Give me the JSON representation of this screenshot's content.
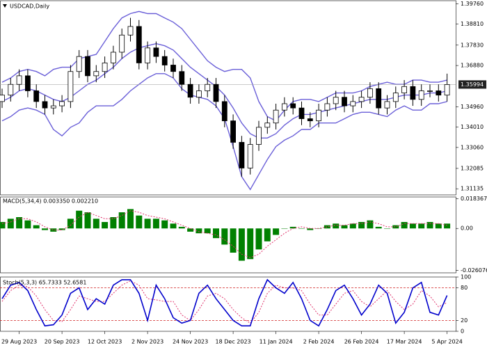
{
  "chart_data": [
    {
      "type": "candlestick",
      "title": "USDCAD,Daily",
      "categories": [
        null,
        null,
        "29 Aug 2023",
        null,
        null,
        null,
        null,
        "20 Sep 2023",
        null,
        null,
        null,
        null,
        "12 Oct 2023",
        null,
        null,
        null,
        null,
        "2 Nov 2023",
        null,
        null,
        null,
        null,
        "24 Nov 2023",
        null,
        null,
        null,
        null,
        "18 Dec 2023",
        null,
        null,
        null,
        null,
        "11 Jan 2024",
        null,
        null,
        null,
        null,
        "2 Feb 2024",
        null,
        null,
        null,
        null,
        "26 Feb 2024",
        null,
        null,
        null,
        null,
        "17 Mar 2024",
        null,
        null,
        null,
        null,
        "5 Apr 2024"
      ],
      "open": [
        1.352,
        1.355,
        1.36,
        1.364,
        1.357,
        1.352,
        1.349,
        1.35,
        1.352,
        1.366,
        1.373,
        1.364,
        1.366,
        1.37,
        1.375,
        1.383,
        1.387,
        1.37,
        1.377,
        1.373,
        1.369,
        1.366,
        1.36,
        1.354,
        1.357,
        1.36,
        1.352,
        1.343,
        1.333,
        1.321,
        1.332,
        1.34,
        1.342,
        1.348,
        1.351,
        1.349,
        1.344,
        1.343,
        1.348,
        1.351,
        1.354,
        1.35,
        1.352,
        1.354,
        1.358,
        1.349,
        1.352,
        1.356,
        1.359,
        1.353,
        1.357,
        1.357,
        1.355
      ],
      "high": [
        1.358,
        1.363,
        1.367,
        1.367,
        1.36,
        1.355,
        1.353,
        1.355,
        1.369,
        1.376,
        1.376,
        1.369,
        1.373,
        1.378,
        1.386,
        1.391,
        1.39,
        1.38,
        1.38,
        1.376,
        1.372,
        1.369,
        1.363,
        1.36,
        1.363,
        1.363,
        1.355,
        1.346,
        1.336,
        1.335,
        1.343,
        1.345,
        1.351,
        1.354,
        1.354,
        1.352,
        1.347,
        1.351,
        1.354,
        1.357,
        1.357,
        1.355,
        1.357,
        1.361,
        1.361,
        1.355,
        1.359,
        1.362,
        1.362,
        1.36,
        1.36,
        1.36,
        1.365
      ],
      "low": [
        1.349,
        1.352,
        1.357,
        1.354,
        1.349,
        1.346,
        1.346,
        1.347,
        1.349,
        1.363,
        1.361,
        1.361,
        1.363,
        1.367,
        1.372,
        1.38,
        1.367,
        1.367,
        1.37,
        1.366,
        1.363,
        1.357,
        1.351,
        1.351,
        1.354,
        1.349,
        1.34,
        1.33,
        1.317,
        1.318,
        1.329,
        1.337,
        1.339,
        1.345,
        1.346,
        1.341,
        1.34,
        1.34,
        1.345,
        1.348,
        1.347,
        1.347,
        1.349,
        1.351,
        1.346,
        1.346,
        1.349,
        1.353,
        1.35,
        1.35,
        1.354,
        1.352,
        1.352
      ],
      "close": [
        1.355,
        1.36,
        1.364,
        1.357,
        1.352,
        1.349,
        1.35,
        1.352,
        1.366,
        1.373,
        1.364,
        1.366,
        1.37,
        1.375,
        1.383,
        1.387,
        1.37,
        1.377,
        1.373,
        1.369,
        1.366,
        1.36,
        1.354,
        1.357,
        1.36,
        1.352,
        1.343,
        1.333,
        1.321,
        1.332,
        1.34,
        1.342,
        1.348,
        1.351,
        1.349,
        1.344,
        1.343,
        1.348,
        1.351,
        1.354,
        1.35,
        1.352,
        1.354,
        1.358,
        1.349,
        1.352,
        1.356,
        1.359,
        1.353,
        1.357,
        1.357,
        1.355,
        1.35994
      ],
      "up_color": "#ffffff",
      "down_color": "#000000",
      "bands": {
        "color": "#6a5fd8",
        "upper": [
          1.361,
          1.363,
          1.366,
          1.367,
          1.366,
          1.364,
          1.367,
          1.368,
          1.368,
          1.372,
          1.373,
          1.374,
          1.38,
          1.386,
          1.391,
          1.393,
          1.394,
          1.393,
          1.393,
          1.391,
          1.389,
          1.386,
          1.381,
          1.376,
          1.371,
          1.368,
          1.366,
          1.367,
          1.367,
          1.363,
          1.352,
          1.345,
          1.343,
          1.348,
          1.352,
          1.353,
          1.353,
          1.352,
          1.354,
          1.356,
          1.356,
          1.356,
          1.357,
          1.359,
          1.36,
          1.361,
          1.36,
          1.36,
          1.362,
          1.362,
          1.361,
          1.361,
          1.362
        ],
        "middle": [
          1.352,
          1.354,
          1.357,
          1.358,
          1.357,
          1.355,
          1.353,
          1.352,
          1.354,
          1.357,
          1.36,
          1.362,
          1.365,
          1.368,
          1.372,
          1.375,
          1.377,
          1.378,
          1.379,
          1.378,
          1.376,
          1.372,
          1.368,
          1.365,
          1.362,
          1.359,
          1.355,
          1.349,
          1.342,
          1.337,
          1.335,
          1.335,
          1.337,
          1.341,
          1.344,
          1.346,
          1.346,
          1.347,
          1.348,
          1.349,
          1.35,
          1.351,
          1.352,
          1.353,
          1.353,
          1.353,
          1.354,
          1.355,
          1.355,
          1.355,
          1.356,
          1.356,
          1.357
        ],
        "lower": [
          1.343,
          1.345,
          1.348,
          1.349,
          1.348,
          1.346,
          1.339,
          1.336,
          1.34,
          1.342,
          1.347,
          1.35,
          1.35,
          1.35,
          1.353,
          1.357,
          1.36,
          1.363,
          1.365,
          1.365,
          1.363,
          1.358,
          1.355,
          1.354,
          1.353,
          1.35,
          1.344,
          1.331,
          1.317,
          1.311,
          1.318,
          1.325,
          1.331,
          1.334,
          1.336,
          1.339,
          1.339,
          1.342,
          1.342,
          1.342,
          1.344,
          1.346,
          1.347,
          1.347,
          1.346,
          1.345,
          1.348,
          1.35,
          1.348,
          1.348,
          1.351,
          1.351,
          1.352
        ]
      },
      "last_price": 1.35994,
      "ylim": [
        1.3085,
        1.399
      ],
      "yticks": [
        {
          "value": 1.3976,
          "label": "1.39760"
        },
        {
          "value": 1.3881,
          "label": "1.38810"
        },
        {
          "value": 1.3783,
          "label": "1.37830"
        },
        {
          "value": 1.3688,
          "label": "1.36880"
        },
        {
          "value": 1.3496,
          "label": "1.34960"
        },
        {
          "value": 1.3401,
          "label": "1.34010"
        },
        {
          "value": 1.3306,
          "label": "1.33060"
        },
        1.32085,
        1.31135
      ]
    },
    {
      "type": "macd",
      "title": "MACD(5,34,4) 0.003350 0.002210",
      "histogram": [
        0.004,
        0.006,
        0.007,
        0.005,
        0.002,
        -0.001,
        -0.002,
        -0.001,
        0.006,
        0.011,
        0.01,
        0.006,
        0.004,
        0.007,
        0.01,
        0.012,
        0.008,
        0.006,
        0.006,
        0.005,
        0.003,
        0.001,
        -0.002,
        -0.003,
        -0.003,
        -0.006,
        -0.01,
        -0.015,
        -0.02,
        -0.019,
        -0.013,
        -0.008,
        -0.004,
        0.0,
        0.001,
        0.0,
        -0.001,
        0.0,
        0.002,
        0.003,
        0.002,
        0.003,
        0.004,
        0.005,
        0.001,
        0.0,
        0.002,
        0.004,
        0.003,
        0.003,
        0.004,
        0.003,
        0.003
      ],
      "signal": [
        0.003,
        0.004,
        0.006,
        0.006,
        0.004,
        0.001,
        -0.001,
        -0.001,
        0.002,
        0.007,
        0.01,
        0.008,
        0.006,
        0.006,
        0.008,
        0.011,
        0.01,
        0.008,
        0.007,
        0.006,
        0.004,
        0.002,
        0.0,
        -0.002,
        -0.003,
        -0.004,
        -0.007,
        -0.011,
        -0.016,
        -0.018,
        -0.016,
        -0.011,
        -0.007,
        -0.003,
        0.0,
        0.001,
        0.0,
        0.0,
        0.001,
        0.002,
        0.002,
        0.003,
        0.003,
        0.004,
        0.003,
        0.001,
        0.001,
        0.003,
        0.003,
        0.003,
        0.003,
        0.003,
        0.002
      ],
      "color": "#008000",
      "signal_color": "#e0306a",
      "ylim": [
        -0.0275,
        0.0195
      ],
      "yticks": [
        0.018367,
        {
          "value": 0,
          "label": "0.00"
        },
        -0.026076
      ]
    },
    {
      "type": "stochastic",
      "title": "Stoch(5,3,3) 65.7333 52.6581",
      "k": [
        60,
        85,
        90,
        75,
        40,
        10,
        12,
        30,
        70,
        80,
        40,
        60,
        50,
        85,
        95,
        95,
        70,
        20,
        85,
        60,
        25,
        15,
        20,
        70,
        85,
        60,
        40,
        20,
        10,
        10,
        60,
        95,
        80,
        70,
        90,
        60,
        20,
        10,
        40,
        75,
        85,
        60,
        30,
        50,
        85,
        70,
        15,
        35,
        80,
        90,
        35,
        30,
        66
      ],
      "d": [
        55,
        75,
        85,
        82,
        65,
        40,
        20,
        18,
        40,
        65,
        60,
        55,
        55,
        70,
        85,
        93,
        85,
        60,
        58,
        55,
        55,
        30,
        20,
        40,
        65,
        70,
        60,
        40,
        25,
        15,
        35,
        70,
        85,
        80,
        80,
        75,
        50,
        30,
        30,
        50,
        70,
        75,
        55,
        45,
        60,
        75,
        55,
        40,
        50,
        75,
        65,
        45,
        53
      ],
      "k_color": "#0000cc",
      "d_color": "#e0306a",
      "levels": [
        80,
        20
      ],
      "level_color": "#d02020",
      "ylim": [
        0,
        100
      ],
      "yticks": [
        100,
        80,
        20,
        0
      ]
    }
  ]
}
